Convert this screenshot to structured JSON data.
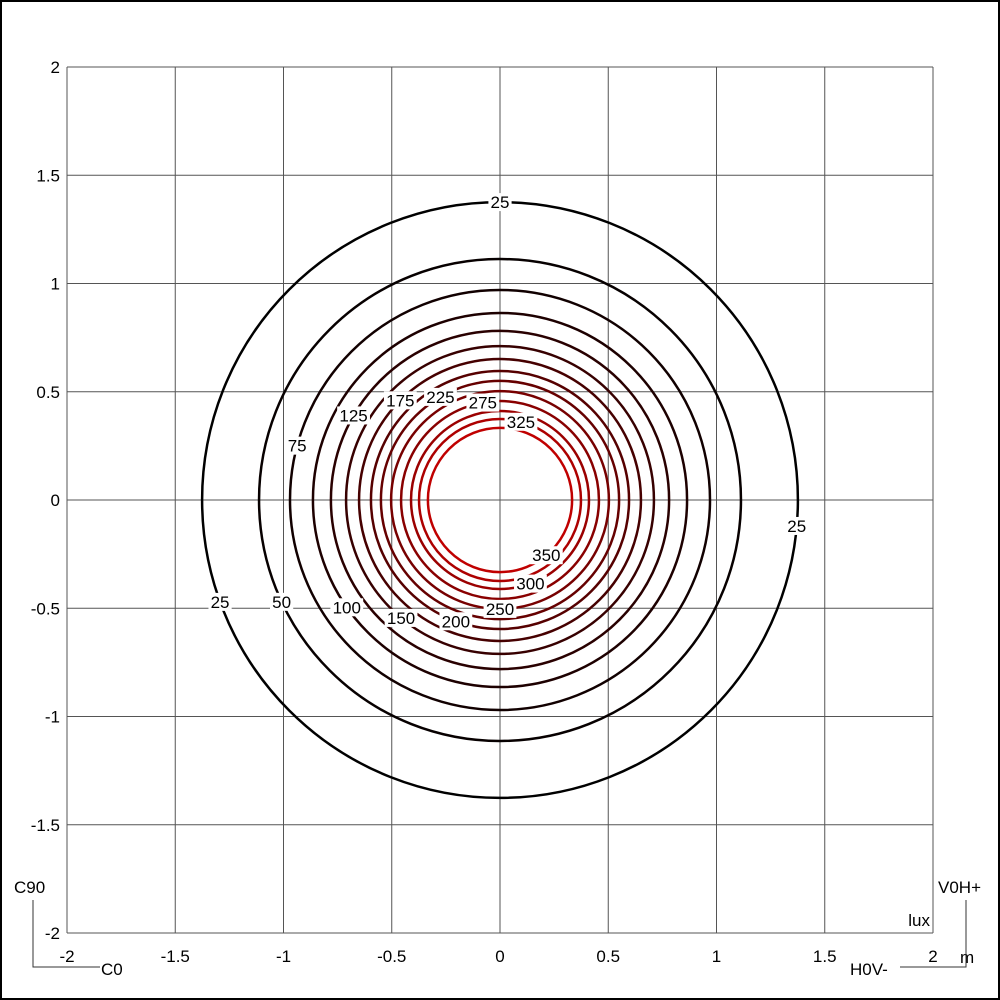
{
  "chart_data": {
    "type": "contour",
    "unit_label": "lux",
    "axis_unit": "m",
    "xlim": [
      -2,
      2
    ],
    "ylim": [
      -2,
      2
    ],
    "x_ticks": [
      "-2",
      "-1.5",
      "-1",
      "-0.5",
      "0",
      "0.5",
      "1",
      "1.5",
      "2"
    ],
    "y_ticks": [
      "2",
      "1.5",
      "1",
      "0.5",
      "0",
      "-0.5",
      "-1",
      "-1.5",
      "-2"
    ],
    "grid": true,
    "center": [
      0,
      0
    ],
    "isolines": [
      {
        "level": "25",
        "radius": 1.376
      },
      {
        "level": "50",
        "radius": 1.113
      },
      {
        "level": "75",
        "radius": 0.97
      },
      {
        "level": "100",
        "radius": 0.864
      },
      {
        "level": "125",
        "radius": 0.781
      },
      {
        "level": "150",
        "radius": 0.711
      },
      {
        "level": "175",
        "radius": 0.651
      },
      {
        "level": "200",
        "radius": 0.596
      },
      {
        "level": "225",
        "radius": 0.55
      },
      {
        "level": "250",
        "radius": 0.503
      },
      {
        "level": "275",
        "radius": 0.457
      },
      {
        "level": "300",
        "radius": 0.411
      },
      {
        "level": "325",
        "radius": 0.374
      },
      {
        "level": "350",
        "radius": 0.333
      }
    ],
    "color_low": "#000000",
    "color_high": "#c00000",
    "corner_labels": {
      "c90": "C90",
      "c0": "C0",
      "v0h_plus": "V0H+",
      "h0v_minus": "H0V-"
    }
  }
}
